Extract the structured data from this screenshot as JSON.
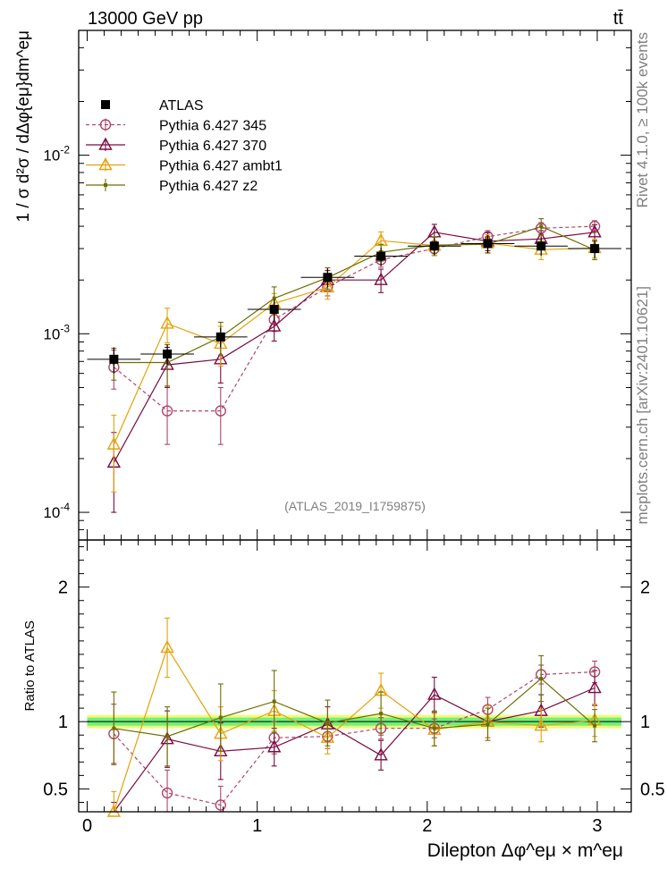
{
  "header": {
    "left": "13000 GeV pp",
    "right": "tt̄"
  },
  "side": {
    "top": "Rivet 4.1.0, ≥ 100k events",
    "bottom": "mcplots.cern.ch [arXiv:2401.10621]"
  },
  "watermark": "(ATLAS_2019_I1759875)",
  "chart_data": {
    "type": "line",
    "title": "13000 GeV pp  tt̄",
    "xlabel": "Dilepton Δφ^eμ × m^eμ",
    "ylabel": "1 / σ d²σ / dΔφ{eμ}dm^eμ",
    "ratio_ylabel": "Ratio to ATLAS",
    "xlim": [
      -0.05,
      3.2
    ],
    "ylim": [
      7e-05,
      0.05
    ],
    "ratio_ylim": [
      0.33,
      2.35
    ],
    "yscale": "log",
    "x": [
      0.157,
      0.471,
      0.785,
      1.1,
      1.414,
      1.728,
      2.042,
      2.356,
      2.67,
      2.985
    ],
    "x_halfwidth": 0.157,
    "x_ticks": [
      "0",
      "1",
      "2",
      "3"
    ],
    "y_ticks": [
      "10^-4",
      "10^-3",
      "10^-2"
    ],
    "ratio_ticks": [
      "0.5",
      "1",
      "2"
    ],
    "legend_position": "top-left",
    "reference": {
      "name": "ATLAS",
      "color": "#000000",
      "values": [
        0.00072,
        0.00077,
        0.00096,
        0.00137,
        0.00207,
        0.00272,
        0.0031,
        0.0032,
        0.0031,
        0.003
      ],
      "errors": [
        0.00012,
        0.0001,
        0.00012,
        0.00018,
        0.00025,
        0.00032,
        0.00035,
        0.00036,
        0.00036,
        0.00034
      ],
      "ratio_band": [
        0.03,
        0.05
      ]
    },
    "series": [
      {
        "name": "Pythia 6.427 345",
        "color": "#b0466a",
        "marker": "circle",
        "dashed": true,
        "values": [
          0.00065,
          0.00037,
          0.00037,
          0.0012,
          0.00183,
          0.0026,
          0.003,
          0.0035,
          0.0039,
          0.004
        ],
        "errors": [
          0.00016,
          0.00013,
          0.00013,
          0.00017,
          0.0002,
          0.00024,
          0.00026,
          0.00028,
          0.00029,
          0.0003
        ],
        "ratio": [
          0.91,
          0.47,
          0.38,
          0.88,
          0.89,
          0.95,
          0.95,
          1.09,
          1.35,
          1.37
        ],
        "ratio_errors": [
          0.22,
          0.17,
          0.14,
          0.12,
          0.09,
          0.08,
          0.07,
          0.09,
          0.07,
          0.08
        ]
      },
      {
        "name": "Pythia 6.427 370",
        "color": "#7a0b40",
        "marker": "triangle",
        "dashed": false,
        "values": [
          0.00019,
          0.00067,
          0.00072,
          0.0011,
          0.002,
          0.002,
          0.0037,
          0.0033,
          0.0034,
          0.0037
        ],
        "errors": [
          9e-05,
          0.00017,
          0.00019,
          0.00019,
          0.00026,
          0.0003,
          0.0004,
          0.00038,
          0.00038,
          0.00038
        ],
        "ratio": [
          0.27,
          0.87,
          0.78,
          0.81,
          0.98,
          0.75,
          1.2,
          1.0,
          1.08,
          1.25
        ],
        "ratio_errors": [
          0.13,
          0.21,
          0.21,
          0.14,
          0.13,
          0.11,
          0.13,
          0.12,
          0.12,
          0.13
        ]
      },
      {
        "name": "Pythia 6.427 ambt1",
        "color": "#e3a20a",
        "marker": "triangle",
        "dashed": false,
        "values": [
          0.00024,
          0.00114,
          0.00088,
          0.00148,
          0.00182,
          0.00332,
          0.00312,
          0.00322,
          0.00296,
          0.00302
        ],
        "errors": [
          0.00011,
          0.00025,
          0.00022,
          0.0002,
          0.00026,
          0.0004,
          0.00037,
          0.00037,
          0.00036,
          0.00036
        ],
        "ratio": [
          0.33,
          1.55,
          0.91,
          1.08,
          0.88,
          1.23,
          0.94,
          1.0,
          0.97,
          1.01
        ],
        "ratio_errors": [
          0.15,
          0.22,
          0.2,
          0.15,
          0.12,
          0.13,
          0.12,
          0.12,
          0.12,
          0.12
        ]
      },
      {
        "name": "Pythia 6.427 z2",
        "color": "#6e6e00",
        "marker": "dot",
        "dashed": false,
        "values": [
          0.00069,
          0.00069,
          0.00096,
          0.00158,
          0.00206,
          0.00286,
          0.00314,
          0.00317,
          0.00399,
          0.00295
        ],
        "errors": [
          0.00014,
          0.00018,
          0.0002,
          0.00025,
          0.00028,
          0.00031,
          0.00033,
          0.00034,
          0.00042,
          0.00035
        ],
        "ratio": [
          0.95,
          0.89,
          1.03,
          1.15,
          0.99,
          1.06,
          0.95,
          0.98,
          1.32,
          0.97
        ],
        "ratio_errors": [
          0.27,
          0.22,
          0.25,
          0.23,
          0.17,
          0.16,
          0.13,
          0.12,
          0.17,
          0.12
        ]
      }
    ]
  }
}
